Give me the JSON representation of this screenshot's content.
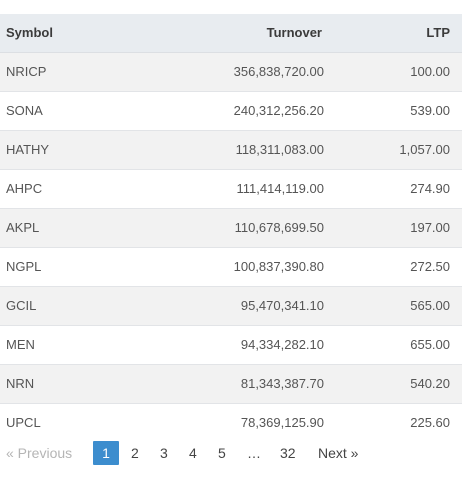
{
  "table": {
    "headers": {
      "symbol": "Symbol",
      "turnover": "Turnover",
      "ltp": "LTP"
    },
    "rows": [
      {
        "symbol": "NRICP",
        "turnover": "356,838,720.00",
        "ltp": "100.00"
      },
      {
        "symbol": "SONA",
        "turnover": "240,312,256.20",
        "ltp": "539.00"
      },
      {
        "symbol": "HATHY",
        "turnover": "118,311,083.00",
        "ltp": "1,057.00"
      },
      {
        "symbol": "AHPC",
        "turnover": "111,414,119.00",
        "ltp": "274.90"
      },
      {
        "symbol": "AKPL",
        "turnover": "110,678,699.50",
        "ltp": "197.00"
      },
      {
        "symbol": "NGPL",
        "turnover": "100,837,390.80",
        "ltp": "272.50"
      },
      {
        "symbol": "GCIL",
        "turnover": "95,470,341.10",
        "ltp": "565.00"
      },
      {
        "symbol": "MEN",
        "turnover": "94,334,282.10",
        "ltp": "655.00"
      },
      {
        "symbol": "NRN",
        "turnover": "81,343,387.70",
        "ltp": "540.20"
      },
      {
        "symbol": "UPCL",
        "turnover": "78,369,125.90",
        "ltp": "225.60"
      }
    ]
  },
  "pagination": {
    "previous": "« Previous",
    "pages": [
      "1",
      "2",
      "3",
      "4",
      "5"
    ],
    "ellipsis": "…",
    "last_page": "32",
    "next": "Next »",
    "current_page": "1",
    "accent_color": "#3c8dce"
  }
}
